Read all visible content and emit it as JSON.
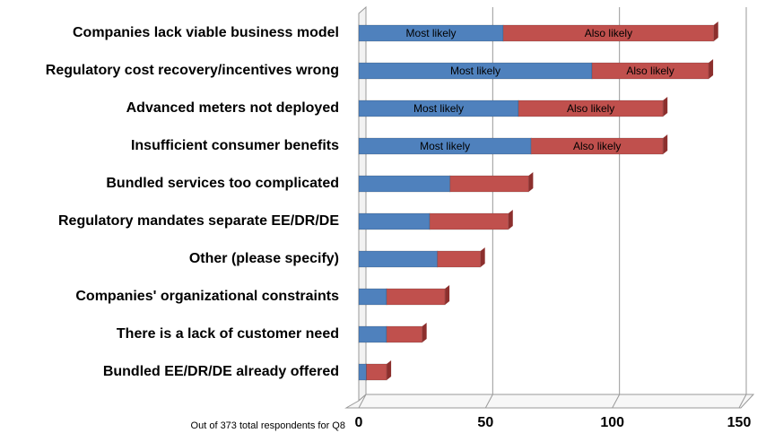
{
  "chart_data": {
    "type": "stacked_bar_horizontal",
    "categories": [
      "Companies lack viable business model",
      "Regulatory cost recovery/incentives wrong",
      "Advanced meters not deployed",
      "Insufficient consumer benefits",
      "Bundled services too complicated",
      "Regulatory mandates separate EE/DR/DE",
      "Other (please specify)",
      "Companies' organizational constraints",
      "There is a lack of customer need",
      "Bundled EE/DR/DE  already offered"
    ],
    "series": [
      {
        "name": "Most likely",
        "color": "#4f81bd",
        "values": [
          57,
          92,
          63,
          68,
          36,
          28,
          31,
          11,
          11,
          3
        ],
        "value_labels": [
          "Most likely",
          "Most likely",
          "Most likely",
          "Most likely",
          null,
          null,
          null,
          null,
          null,
          null
        ]
      },
      {
        "name": "Also likely",
        "color": "#c0504d",
        "values": [
          83,
          46,
          57,
          52,
          31,
          31,
          17,
          23,
          14,
          8
        ],
        "value_labels": [
          "Also likely",
          "Also likely",
          "Also likely",
          "Also likely",
          null,
          null,
          null,
          null,
          null,
          null
        ]
      }
    ],
    "xlim": [
      0,
      150
    ],
    "xticks": [
      0,
      50,
      100,
      150
    ],
    "grid": true,
    "note": "Out of 373 total respondents for Q8"
  }
}
